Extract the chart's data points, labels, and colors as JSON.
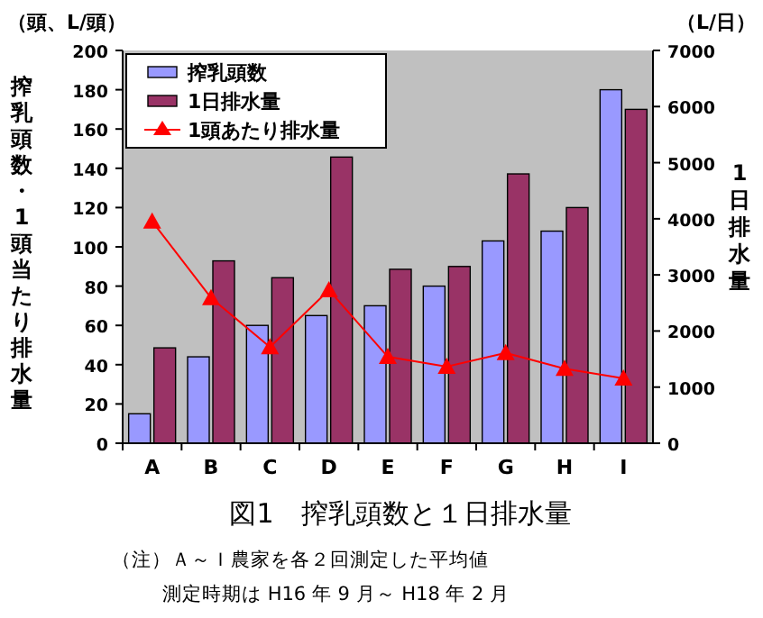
{
  "chart_data": {
    "type": "bar",
    "title": "図1　搾乳頭数と１日排水量",
    "ylabel": "搾乳頭数・1頭当たり排水量",
    "y2label": "1日排水量",
    "annotations": [
      "（頭、L/頭）",
      "（L/日）",
      "（注）Ａ～Ｉ農家を各２回測定した平均値",
      "測定時期は H16 年 9 月～ H18 年 2 月"
    ],
    "categories": [
      "A",
      "B",
      "C",
      "D",
      "E",
      "F",
      "G",
      "H",
      "I"
    ],
    "series": [
      {
        "name": "搾乳頭数",
        "axis": "y",
        "color": "#9999ff",
        "values": [
          15,
          44,
          60,
          65,
          70,
          80,
          103,
          108,
          180
        ]
      },
      {
        "name": "1日排水量",
        "axis": "y2",
        "color": "#993366",
        "values": [
          1700,
          3250,
          2950,
          5100,
          3100,
          3150,
          4800,
          4200,
          5950
        ]
      },
      {
        "name": "1頭あたり排水量",
        "type": "line",
        "axis": "y",
        "color": "#ff0000",
        "marker": "triangle",
        "values": [
          113,
          74,
          49,
          78,
          44,
          39,
          46,
          38,
          33
        ]
      }
    ],
    "ylim": [
      0,
      200
    ],
    "yticks": [
      0,
      20,
      40,
      60,
      80,
      100,
      120,
      140,
      160,
      180,
      200
    ],
    "y2lim": [
      0,
      7000
    ],
    "y2ticks": [
      0,
      1000,
      2000,
      3000,
      4000,
      5000,
      6000,
      7000
    ],
    "grid": false,
    "legend": "top left"
  }
}
